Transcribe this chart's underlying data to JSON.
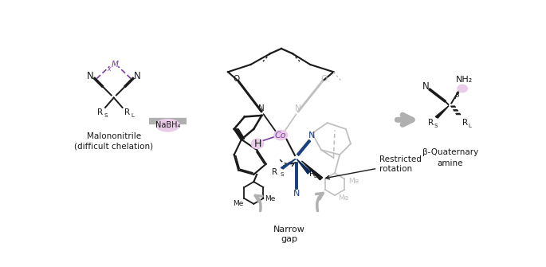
{
  "bg_color": "#ffffff",
  "arrow_color": "#b0b0b0",
  "dark_color": "#1a1a1a",
  "purple_color": "#7B3FA0",
  "blue_color": "#1a4080",
  "light_purple_fill": "#e8cce8",
  "gray_structure": "#999999",
  "light_gray": "#c0c0c0",
  "left_label": "Malononitrile\n(difficult chelation)",
  "right_label": "β-Quaternary\namine",
  "nabh4_label": "NaBH₄",
  "narrow_gap_label": "Narrow\ngap",
  "restricted_label": "Restricted\nrotation",
  "co_label": "Co",
  "h_label": "H",
  "beta_label": "β",
  "nh2_label": "NH₂",
  "me_label": "Me",
  "n_label": "N",
  "o_label": "O",
  "m_label": "M"
}
